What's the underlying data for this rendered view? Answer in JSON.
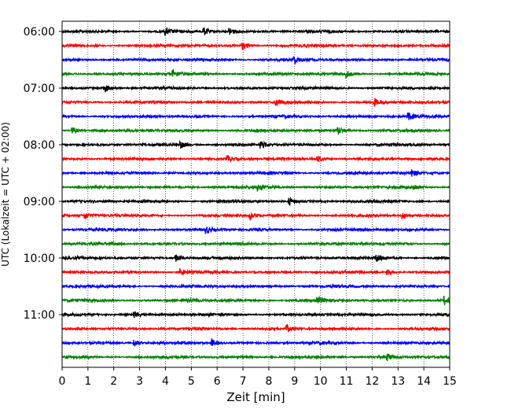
{
  "chart_data": {
    "type": "line",
    "title": "",
    "xlabel": "Zeit  [min]",
    "ylabel": "UTC (Lokalzeit = UTC + 02:00)",
    "xlim": [
      0,
      15
    ],
    "x_ticks": [
      0,
      1,
      2,
      3,
      4,
      5,
      6,
      7,
      8,
      9,
      10,
      11,
      12,
      13,
      14,
      15
    ],
    "x_grid": "dotted",
    "y_tick_labels": [
      "06:00",
      "07:00",
      "08:00",
      "09:00",
      "10:00",
      "11:00"
    ],
    "trace_interval_min": 15,
    "trace_colors": [
      "#000000",
      "#ff0000",
      "#0000ff",
      "#008000"
    ],
    "traces": [
      {
        "start": "06:00",
        "color": "#000000",
        "events": [
          4.0,
          5.5,
          6.5
        ]
      },
      {
        "start": "06:15",
        "color": "#ff0000",
        "events": [
          7.0
        ]
      },
      {
        "start": "06:30",
        "color": "#0000ff",
        "events": [
          9.0
        ]
      },
      {
        "start": "06:45",
        "color": "#008000",
        "events": [
          4.3,
          11.0
        ]
      },
      {
        "start": "07:00",
        "color": "#000000",
        "events": [
          1.7
        ]
      },
      {
        "start": "07:15",
        "color": "#ff0000",
        "events": [
          8.3,
          12.1
        ]
      },
      {
        "start": "07:30",
        "color": "#0000ff",
        "events": [
          13.4
        ]
      },
      {
        "start": "07:45",
        "color": "#008000",
        "events": [
          0.4,
          10.7
        ]
      },
      {
        "start": "08:00",
        "color": "#000000",
        "events": [
          4.6,
          7.7
        ]
      },
      {
        "start": "08:15",
        "color": "#ff0000",
        "events": [
          6.4,
          9.9
        ]
      },
      {
        "start": "08:30",
        "color": "#0000ff",
        "events": [
          13.5
        ]
      },
      {
        "start": "08:45",
        "color": "#008000",
        "events": [
          7.6,
          13.6
        ]
      },
      {
        "start": "09:00",
        "color": "#000000",
        "events": [
          8.8
        ]
      },
      {
        "start": "09:15",
        "color": "#ff0000",
        "events": [
          0.9,
          7.3,
          13.2
        ]
      },
      {
        "start": "09:30",
        "color": "#0000ff",
        "events": [
          5.6
        ]
      },
      {
        "start": "09:45",
        "color": "#008000",
        "events": []
      },
      {
        "start": "10:00",
        "color": "#000000",
        "events": [
          4.4,
          12.2
        ]
      },
      {
        "start": "10:15",
        "color": "#ff0000",
        "events": [
          4.6,
          12.6
        ]
      },
      {
        "start": "10:30",
        "color": "#0000ff",
        "events": []
      },
      {
        "start": "10:45",
        "color": "#008000",
        "events": [
          4.9,
          9.9,
          14.8
        ]
      },
      {
        "start": "11:00",
        "color": "#000000",
        "events": [
          2.8
        ]
      },
      {
        "start": "11:15",
        "color": "#ff0000",
        "events": [
          8.7
        ]
      },
      {
        "start": "11:30",
        "color": "#0000ff",
        "events": [
          2.8,
          5.8
        ]
      },
      {
        "start": "11:45",
        "color": "#008000",
        "events": [
          12.6
        ]
      }
    ]
  }
}
